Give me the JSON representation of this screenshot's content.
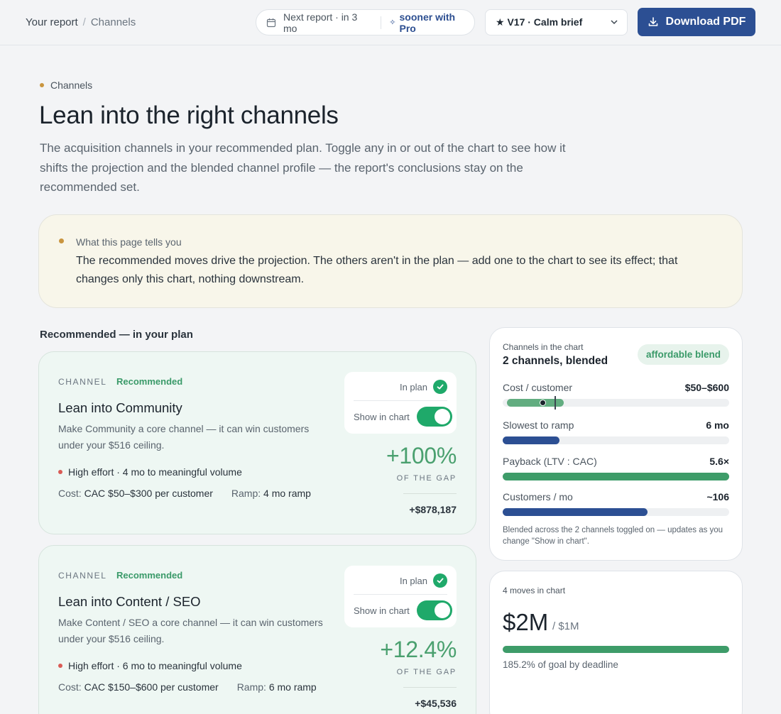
{
  "breadcrumb": {
    "root": "Your report",
    "current": "Channels"
  },
  "next_report": {
    "text": "Next report · in 3 mo",
    "pro_text": "sooner with Pro"
  },
  "version_select": {
    "value": "★ V17 · Calm brief"
  },
  "download": {
    "label": "Download PDF"
  },
  "hero": {
    "eyebrow": "Channels",
    "title": "Lean into the right channels",
    "description": "The acquisition channels in your recommended plan. Toggle any in or out of the chart to see how it shifts the projection and the blended channel profile — the report's conclusions stay on the recommended set."
  },
  "callout": {
    "label": "What this page tells you",
    "body": "The recommended moves drive the projection. The others aren't in the plan — add one to the chart to see its effect; that changes only this chart, nothing downstream."
  },
  "section_heading": "Recommended — in your plan",
  "channels": [
    {
      "kicker": "CHANNEL",
      "tag": "Recommended",
      "title": "Lean into Community",
      "description": "Make Community a core channel — it can win customers under your $516 ceiling.",
      "effort": "High effort · 4 mo to meaningful volume",
      "cost_key": "Cost:",
      "cost_value": "CAC $50–$300 per customer",
      "ramp_key": "Ramp:",
      "ramp_value": "4 mo ramp",
      "in_plan_label": "In plan",
      "show_label": "Show in chart",
      "show_in_chart": true,
      "impact": "+100%",
      "impact_label": "OF THE GAP",
      "dollars": "+$878,187"
    },
    {
      "kicker": "CHANNEL",
      "tag": "Recommended",
      "title": "Lean into Content / SEO",
      "description": "Make Content / SEO a core channel — it can win customers under your $516 ceiling.",
      "effort": "High effort · 6 mo to meaningful volume",
      "cost_key": "Cost:",
      "cost_value": "CAC $150–$600 per customer",
      "ramp_key": "Ramp:",
      "ramp_value": "6 mo ramp",
      "in_plan_label": "In plan",
      "show_label": "Show in chart",
      "show_in_chart": true,
      "impact": "+12.4%",
      "impact_label": "OF THE GAP",
      "dollars": "+$45,536"
    }
  ],
  "blend_panel": {
    "label": "Channels in the chart",
    "title": "2 channels, blended",
    "badge": "affordable blend",
    "metrics": [
      {
        "label": "Cost / customer",
        "value": "$50–$600",
        "range_start": 0.02,
        "range_end": 0.27,
        "marker": 0.18,
        "ceiling": 0.23,
        "color": "#62ad80"
      },
      {
        "label": "Slowest to ramp",
        "value": "6 mo",
        "fill": 0.25,
        "color": "#2c4f93"
      },
      {
        "label": "Payback (LTV : CAC)",
        "value": "5.6×",
        "fill": 1.0,
        "color": "#3e9c69"
      },
      {
        "label": "Customers / mo",
        "value": "~106",
        "fill": 0.64,
        "color": "#2c4f93"
      }
    ],
    "note": "Blended across the 2 channels toggled on — updates as you change \"Show in chart\"."
  },
  "goal_panel": {
    "label": "4 moves in chart",
    "value": "$2M",
    "goal": "/ $1M",
    "progress": 1.0,
    "note": "185.2% of goal by deadline"
  },
  "colors": {
    "accent": "#2c4f93",
    "success": "#1fa96a",
    "warning_dot": "#c9953f",
    "effort_dot": "#d95b55"
  }
}
